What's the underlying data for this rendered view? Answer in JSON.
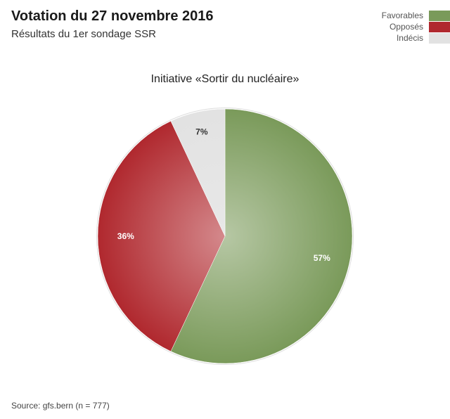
{
  "header": {
    "title": "Votation du 27 novembre 2016",
    "subtitle": "Résultats du 1er sondage SSR"
  },
  "legend": [
    {
      "label": "Favorables",
      "color": "#7a9a5a"
    },
    {
      "label": "Opposés",
      "color": "#b0282e"
    },
    {
      "label": "Indécis",
      "color": "#e2e2e2"
    }
  ],
  "chart_data": {
    "type": "pie",
    "title": "Initiative «Sortir du nucléaire»",
    "slices": [
      {
        "label": "Favorables",
        "value": 57,
        "display": "57%",
        "color": "#7a9a5a"
      },
      {
        "label": "Opposés",
        "value": 36,
        "display": "36%",
        "color": "#b0282e"
      },
      {
        "label": "Indécis",
        "value": 7,
        "display": "7%",
        "color": "#e2e2e2"
      }
    ],
    "start": "top",
    "direction": "clockwise"
  },
  "footer": {
    "source": "Source: gfs.bern (n = 777)"
  }
}
